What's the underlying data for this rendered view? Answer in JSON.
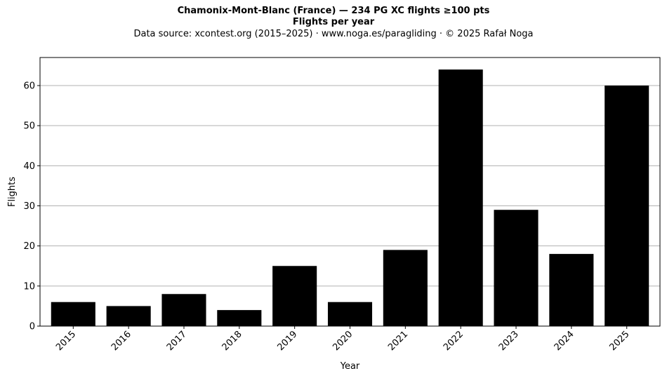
{
  "header": {
    "title": "Chamonix-Mont-Blanc (France)  —  234 PG XC flights ≥100 pts",
    "subtitle": "Flights per year",
    "source": "Data source: xcontest.org (2015–2025)  ·  www.noga.es/paragliding  ·  © 2025 Rafał Noga"
  },
  "chart_data": {
    "type": "bar",
    "title": "Chamonix-Mont-Blanc (France)  —  234 PG XC flights ≥100 pts",
    "subtitle": "Flights per year",
    "xlabel": "Year",
    "ylabel": "Flights",
    "categories": [
      "2015",
      "2016",
      "2017",
      "2018",
      "2019",
      "2020",
      "2021",
      "2022",
      "2023",
      "2024",
      "2025"
    ],
    "values": [
      6,
      5,
      8,
      4,
      15,
      6,
      19,
      64,
      29,
      18,
      60
    ],
    "ylim": [
      0,
      67
    ],
    "yticks": [
      0,
      10,
      20,
      30,
      40,
      50,
      60
    ],
    "grid": "y",
    "bar_color": "#000000",
    "grid_color": "#b0b0b0"
  }
}
